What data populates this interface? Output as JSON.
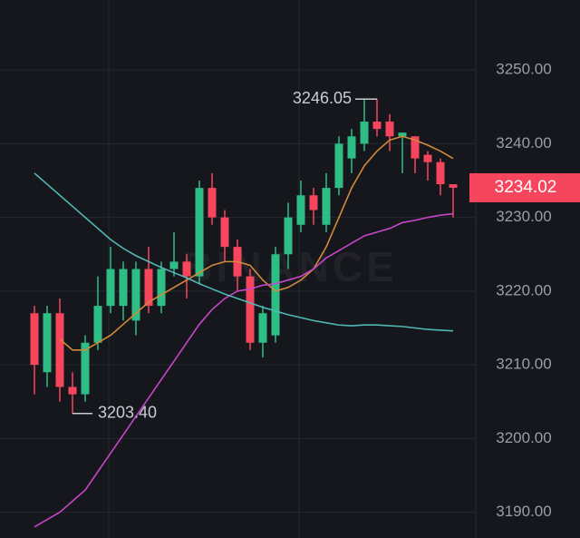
{
  "chart_data": {
    "type": "candlestick",
    "watermark": "BINANCE",
    "ylim": [
      3186.5,
      3259.5
    ],
    "yticks": [
      {
        "value": 3190,
        "label": "3190.00"
      },
      {
        "value": 3200,
        "label": "3200.00"
      },
      {
        "value": 3210,
        "label": "3210.00"
      },
      {
        "value": 3220,
        "label": "3220.00"
      },
      {
        "value": 3230,
        "label": "3230.00"
      },
      {
        "value": 3240,
        "label": "3240.00"
      },
      {
        "value": 3250,
        "label": "3250.00"
      }
    ],
    "grid": true,
    "up_color": "#2ebd85",
    "down_color": "#f6465d",
    "open": [
      3217,
      3209,
      3217,
      3207,
      3206,
      3213,
      3218,
      3218,
      3216,
      3223,
      3218,
      3223,
      3224,
      3222,
      3234,
      3230,
      3226,
      3222,
      3213,
      3214,
      3225,
      3229,
      3233,
      3229,
      3234,
      3238,
      3240,
      3243,
      3243,
      3241,
      3241,
      3238.5,
      3237.5,
      3234.5
    ],
    "high": [
      3218,
      3218,
      3219,
      3209,
      3214,
      3222,
      3226,
      3224,
      3224,
      3226,
      3224,
      3228,
      3225,
      3235,
      3236,
      3231,
      3227,
      3223,
      3218,
      3226,
      3232,
      3235,
      3234,
      3236,
      3241,
      3242,
      3246,
      3246.05,
      3244,
      3241.5,
      3241,
      3239,
      3238,
      3234.5
    ],
    "low": [
      3206,
      3207,
      3205,
      3203.4,
      3205,
      3212,
      3217,
      3216,
      3214,
      3217,
      3217,
      3222,
      3219,
      3221,
      3229,
      3224,
      3220,
      3212,
      3211,
      3213,
      3223,
      3228,
      3229,
      3228,
      3233,
      3236,
      3239,
      3241,
      3239,
      3236,
      3236,
      3235,
      3233,
      3230
    ],
    "close": [
      3210,
      3217,
      3207,
      3206,
      3213,
      3218,
      3223,
      3223,
      3223,
      3218,
      3223,
      3224,
      3222,
      3234,
      3230,
      3226,
      3222,
      3213,
      3217,
      3225,
      3230,
      3233,
      3231,
      3234,
      3240,
      3241,
      3243,
      3242,
      3241,
      3241.5,
      3238,
      3237.5,
      3234.5,
      3234.02
    ],
    "lines": [
      {
        "color": "#d08a3a",
        "values": [
          null,
          null,
          3213.5,
          3212,
          3212,
          3213,
          3214,
          3215.5,
          3217,
          3218.5,
          3219.5,
          3220.5,
          3221.5,
          3222.5,
          3223.5,
          3224,
          3224,
          3223.5,
          3221.5,
          3220,
          3220.5,
          3221.5,
          3223,
          3226,
          3230,
          3234,
          3237,
          3239,
          3240.5,
          3241,
          3240.5,
          3239.8,
          3239,
          3238
        ]
      },
      {
        "color": "#c745c9",
        "values": [
          3188,
          3189,
          3190,
          3191.5,
          3193,
          3195.5,
          3198,
          3200.5,
          3203,
          3205.5,
          3208,
          3210.5,
          3213,
          3215.5,
          3217.5,
          3219,
          3220,
          3220.3,
          3220.8,
          3221,
          3221.5,
          3222,
          3223,
          3224.5,
          3225.5,
          3226.5,
          3227.5,
          3228,
          3228.5,
          3229.3,
          3229.6,
          3230,
          3230.3,
          3230.5
        ]
      },
      {
        "color": "#4fb8b4",
        "values": [
          3236,
          3234.5,
          3233,
          3231.5,
          3230,
          3228.5,
          3227,
          3225.8,
          3224.8,
          3224,
          3223.2,
          3222.5,
          3221.8,
          3221,
          3220.3,
          3219.6,
          3219,
          3218.4,
          3217.8,
          3217.3,
          3216.8,
          3216.4,
          3216,
          3215.7,
          3215.4,
          3215.3,
          3215.4,
          3215.4,
          3215.3,
          3215.2,
          3215,
          3214.8,
          3214.7,
          3214.6
        ]
      }
    ],
    "annotations": [
      {
        "index": 27,
        "value": 3246.05,
        "label": "3246.05",
        "side": "left"
      },
      {
        "index": 3,
        "value": 3203.4,
        "label": "3203.40",
        "side": "right"
      }
    ],
    "last_price": 3234.02,
    "last_price_color": "#f6465d"
  }
}
